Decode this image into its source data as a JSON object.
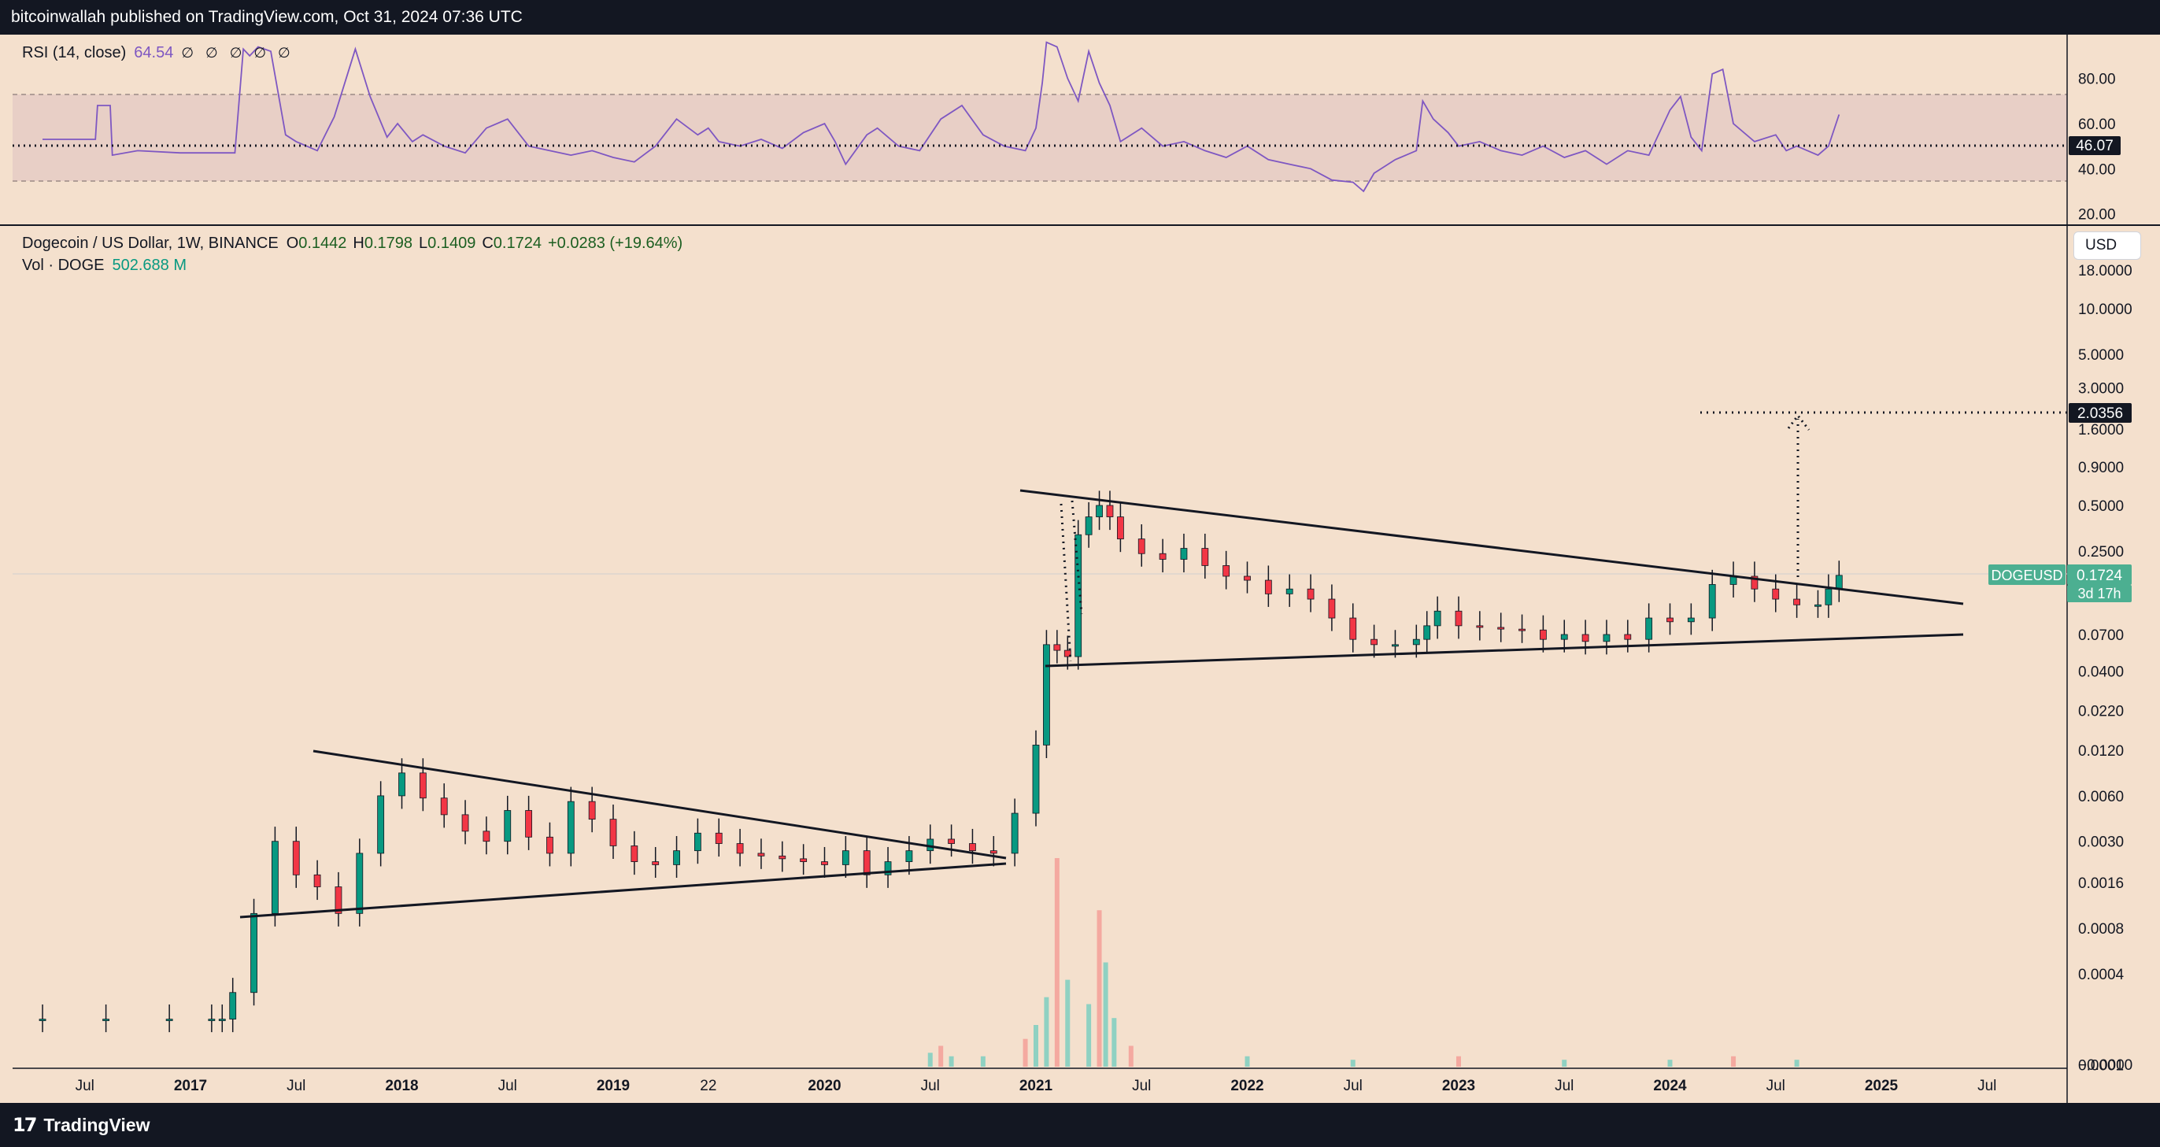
{
  "header": {
    "publisher_text": "bitcoinwallah published on TradingView.com, Oct 31, 2024 07:36 UTC"
  },
  "footer": {
    "brand": "TradingView",
    "logo_icon": "tradingview-logo-icon",
    "logo_glyph": "17"
  },
  "rsi_legend": {
    "name": "RSI (14, close)",
    "value": "64.54",
    "placeholders": "∅ ∅ ∅ ∅ ∅"
  },
  "main_legend": {
    "symbol": "Dogecoin / US Dollar, 1W, BINANCE",
    "open_label": "O",
    "open": "0.1442",
    "high_label": "H",
    "high": "0.1798",
    "low_label": "L",
    "low": "0.1409",
    "close_label": "C",
    "close": "0.1724",
    "change": "+0.0283 (+19.64%)"
  },
  "vol_legend": {
    "name": "Vol · DOGE",
    "value": "502.688 M"
  },
  "currency_button": "USD",
  "colors": {
    "background": "#f4e0cd",
    "up": "#089981",
    "down": "#f23645",
    "rsi_line": "#7e57c2",
    "rsi_band": "#e8cfc6"
  },
  "chart_data": [
    {
      "type": "line",
      "name": "RSI (14, close)",
      "y_ticks": [
        "80.00",
        "60.00",
        "40.00",
        "20.00"
      ],
      "band": [
        30,
        70
      ],
      "ylim": [
        15,
        98
      ],
      "current_value_label": "46.07",
      "reference_level": 46.07,
      "x": [
        2016.3,
        2016.55,
        2016.56,
        2016.62,
        2016.63,
        2016.75,
        2016.95,
        2017.2,
        2017.21,
        2017.25,
        2017.28,
        2017.32,
        2017.38,
        2017.45,
        2017.5,
        2017.6,
        2017.68,
        2017.78,
        2017.85,
        2017.93,
        2017.98,
        2018.05,
        2018.1,
        2018.2,
        2018.3,
        2018.4,
        2018.5,
        2018.6,
        2018.7,
        2018.8,
        2018.9,
        2019.0,
        2019.1,
        2019.2,
        2019.3,
        2019.4,
        2019.45,
        2019.5,
        2019.6,
        2019.7,
        2019.8,
        2019.9,
        2020.0,
        2020.05,
        2020.1,
        2020.2,
        2020.25,
        2020.35,
        2020.45,
        2020.55,
        2020.65,
        2020.75,
        2020.85,
        2020.95,
        2021.0,
        2021.03,
        2021.05,
        2021.1,
        2021.15,
        2021.2,
        2021.25,
        2021.3,
        2021.35,
        2021.4,
        2021.5,
        2021.6,
        2021.7,
        2021.8,
        2021.9,
        2022.0,
        2022.1,
        2022.2,
        2022.3,
        2022.4,
        2022.5,
        2022.55,
        2022.6,
        2022.7,
        2022.8,
        2022.83,
        2022.88,
        2022.95,
        2023.0,
        2023.1,
        2023.2,
        2023.3,
        2023.4,
        2023.5,
        2023.6,
        2023.7,
        2023.8,
        2023.9,
        2024.0,
        2024.05,
        2024.1,
        2024.15,
        2024.2,
        2024.25,
        2024.3,
        2024.4,
        2024.5,
        2024.55,
        2024.6,
        2024.7,
        2024.75,
        2024.8
      ],
      "values": [
        53,
        53,
        68,
        68,
        46,
        48,
        47,
        47,
        47,
        93,
        90,
        94,
        92,
        55,
        52,
        48,
        63,
        93,
        72,
        54,
        60,
        52,
        55,
        50,
        47,
        58,
        62,
        50,
        48,
        46,
        48,
        45,
        43,
        50,
        62,
        55,
        58,
        52,
        50,
        53,
        49,
        56,
        60,
        52,
        42,
        55,
        58,
        50,
        48,
        62,
        68,
        55,
        50,
        48,
        58,
        78,
        96,
        94,
        80,
        70,
        92,
        78,
        68,
        52,
        58,
        50,
        52,
        48,
        45,
        50,
        44,
        42,
        40,
        35,
        34,
        30,
        38,
        44,
        48,
        70,
        62,
        56,
        50,
        52,
        48,
        46,
        50,
        45,
        48,
        42,
        48,
        46,
        66,
        72,
        54,
        48,
        82,
        84,
        60,
        52,
        55,
        48,
        50,
        46,
        50,
        64
      ]
    },
    {
      "type": "candlestick",
      "name": "Dogecoin / US Dollar, 1W, BINANCE",
      "scale": "log",
      "y_ticks": [
        "18.0000",
        "10.0000",
        "5.0000",
        "3.0000",
        "1.6000",
        "0.9000",
        "0.5000",
        "0.2500",
        "0.1330",
        "0.0700",
        "0.0400",
        "0.0220",
        "0.0120",
        "0.0060",
        "0.0030",
        "0.0016",
        "0.0008",
        "0.0004",
        "0.0001",
        "−0.0000"
      ],
      "x_ticks": [
        "Jul",
        "2017",
        "Jul",
        "2018",
        "Jul",
        "2019",
        "22",
        "2020",
        "Jul",
        "2021",
        "Jul",
        "2022",
        "Jul",
        "2023",
        "Jul",
        "2024",
        "Jul",
        "2025",
        "Jul"
      ],
      "x_tick_values": [
        2016.5,
        2017.0,
        2017.5,
        2018.0,
        2018.5,
        2019.0,
        2019.45,
        2020.0,
        2020.5,
        2021.0,
        2021.5,
        2022.0,
        2022.5,
        2023.0,
        2023.5,
        2024.0,
        2024.5,
        2025.0,
        2025.5
      ],
      "last_price": {
        "symbol": "DOGEUSD",
        "value": "0.1724",
        "countdown": "3d 17h"
      },
      "target_label": "2.0356",
      "target_value": 2.0356,
      "series": [
        {
          "name": "",
          "x": [
            2016.0,
            2016.3,
            2016.6,
            2016.9,
            2017.1,
            2017.15,
            2017.2,
            2017.3,
            2017.4,
            2017.5,
            2017.6,
            2017.7,
            2017.8,
            2017.9,
            2018.0,
            2018.1,
            2018.2,
            2018.3,
            2018.4,
            2018.5,
            2018.6,
            2018.7,
            2018.8,
            2018.9,
            2019.0,
            2019.1,
            2019.2,
            2019.3,
            2019.4,
            2019.5,
            2019.6,
            2019.7,
            2019.8,
            2019.9,
            2020.0,
            2020.1,
            2020.2,
            2020.3,
            2020.4,
            2020.5,
            2020.6,
            2020.7,
            2020.8,
            2020.9,
            2021.0,
            2021.05,
            2021.1,
            2021.15,
            2021.2,
            2021.25,
            2021.3,
            2021.35,
            2021.4,
            2021.5,
            2021.6,
            2021.7,
            2021.8,
            2021.9,
            2022.0,
            2022.1,
            2022.2,
            2022.3,
            2022.4,
            2022.5,
            2022.6,
            2022.7,
            2022.8,
            2022.85,
            2022.9,
            2023.0,
            2023.1,
            2023.2,
            2023.3,
            2023.4,
            2023.5,
            2023.6,
            2023.7,
            2023.8,
            2023.9,
            2024.0,
            2024.1,
            2024.2,
            2024.3,
            2024.4,
            2024.5,
            2024.6,
            2024.7,
            2024.75,
            2024.8
          ],
          "values": [
            0.0002,
            0.0002,
            0.0002,
            0.0002,
            0.0002,
            0.0002,
            0.0003,
            0.001,
            0.003,
            0.0018,
            0.0015,
            0.001,
            0.0025,
            0.006,
            0.0085,
            0.0058,
            0.0045,
            0.0035,
            0.003,
            0.0048,
            0.0032,
            0.0025,
            0.0055,
            0.0042,
            0.0028,
            0.0022,
            0.0021,
            0.0026,
            0.0034,
            0.0029,
            0.0025,
            0.0024,
            0.0023,
            0.0022,
            0.0021,
            0.0026,
            0.0018,
            0.0022,
            0.0026,
            0.0031,
            0.0029,
            0.0026,
            0.0025,
            0.0046,
            0.013,
            0.06,
            0.055,
            0.05,
            0.32,
            0.42,
            0.5,
            0.42,
            0.3,
            0.24,
            0.22,
            0.26,
            0.2,
            0.17,
            0.16,
            0.13,
            0.14,
            0.12,
            0.09,
            0.065,
            0.06,
            0.06,
            0.065,
            0.08,
            0.1,
            0.08,
            0.078,
            0.076,
            0.075,
            0.065,
            0.07,
            0.063,
            0.07,
            0.065,
            0.09,
            0.085,
            0.09,
            0.15,
            0.17,
            0.14,
            0.12,
            0.11,
            0.11,
            0.14,
            0.1724
          ]
        }
      ]
    },
    {
      "type": "bar",
      "name": "Vol · DOGE",
      "x": [
        2020.5,
        2020.55,
        2020.6,
        2020.75,
        2020.95,
        2021.0,
        2021.05,
        2021.1,
        2021.15,
        2021.25,
        2021.3,
        2021.33,
        2021.37,
        2021.45,
        2022.0,
        2022.5,
        2023.0,
        2023.5,
        2024.0,
        2024.3,
        2024.6
      ],
      "values": [
        4,
        6,
        3,
        3,
        8,
        12,
        20,
        60,
        25,
        18,
        45,
        30,
        14,
        6,
        3,
        2,
        3,
        2,
        2,
        3,
        2
      ]
    }
  ]
}
